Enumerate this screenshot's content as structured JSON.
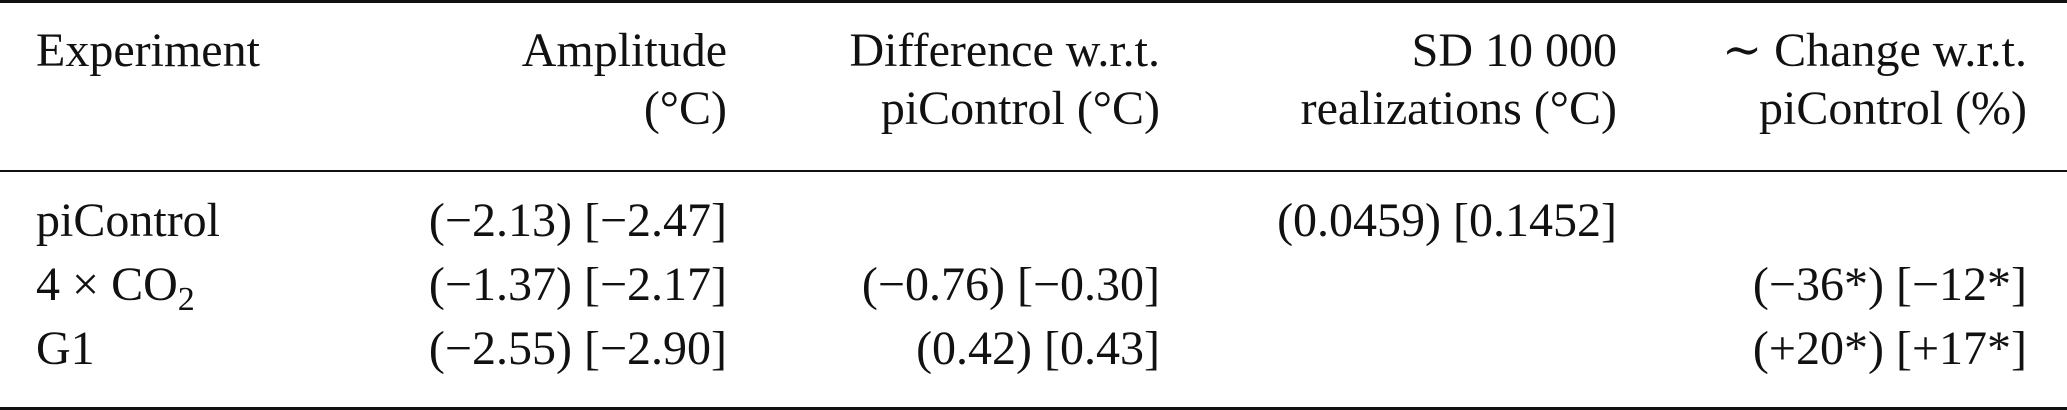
{
  "table": {
    "headers": {
      "experiment": "Experiment",
      "amplitude_line1": "Amplitude",
      "amplitude_line2": "(°C)",
      "difference_line1": "Difference w.r.t.",
      "difference_line2": "piControl (°C)",
      "sd_line1": "SD 10 000",
      "sd_line2": "realizations (°C)",
      "change_line1": "∼ Change w.r.t.",
      "change_line2": "piControl (%)"
    },
    "rows": [
      {
        "experiment": "piControl",
        "experiment_sub": "",
        "amplitude": "(−2.13) [−2.47]",
        "difference": "",
        "sd": "(0.0459) [0.1452]",
        "change": ""
      },
      {
        "experiment": "4 × CO",
        "experiment_sub": "2",
        "amplitude": "(−1.37) [−2.17]",
        "difference": "(−0.76) [−0.30]",
        "sd": "",
        "change": "(−36*) [−12*]"
      },
      {
        "experiment": "G1",
        "experiment_sub": "",
        "amplitude": "(−2.55) [−2.90]",
        "difference": "(0.42) [0.43]",
        "sd": "",
        "change": "(+20*) [+17*]"
      }
    ]
  }
}
